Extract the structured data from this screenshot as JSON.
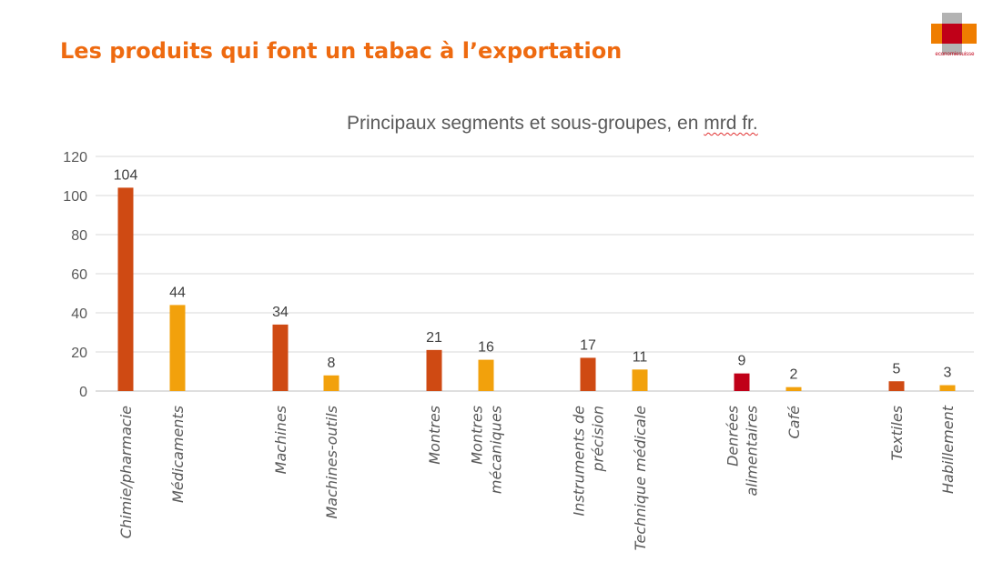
{
  "page": {
    "title": "Les produits qui font un tabac à l’exportation",
    "logo_text": "economiesuisse"
  },
  "colors": {
    "title": "#ee6a10",
    "segment": "#cf4a13",
    "subgroup": "#f2a10c",
    "highlight": "#c00018",
    "grid": "#d9d9d9",
    "text": "#595959"
  },
  "chart_data": {
    "type": "bar",
    "title_before": "Principaux segments et sous-groupes, en ",
    "title_flagged": "mrd fr.",
    "ylim": [
      0,
      120
    ],
    "yticks": [
      0,
      20,
      40,
      60,
      80,
      100,
      120
    ],
    "grid": true,
    "legend": "none",
    "categories": [
      [
        "Chimie/pharmacie"
      ],
      [
        "Médicaments"
      ],
      [
        "Machines"
      ],
      [
        "Machines-outils"
      ],
      [
        "Montres"
      ],
      [
        "Montres",
        "mécaniques"
      ],
      [
        "Instruments de",
        "précision"
      ],
      [
        "Technique médicale"
      ],
      [
        "Denrées",
        "alimentaires"
      ],
      [
        "Café"
      ],
      [
        "Textiles"
      ],
      [
        "Habillement"
      ]
    ],
    "values": [
      104,
      44,
      34,
      8,
      21,
      16,
      17,
      11,
      9,
      2,
      5,
      3
    ],
    "kinds": [
      "segment",
      "subgroup",
      "segment",
      "subgroup",
      "segment",
      "subgroup",
      "segment",
      "subgroup",
      "highlight",
      "subgroup",
      "segment",
      "subgroup"
    ],
    "data_labels": [
      "104",
      "44",
      "34",
      "8",
      "21",
      "16",
      "17",
      "11",
      "9",
      "2",
      "5",
      "3"
    ]
  }
}
